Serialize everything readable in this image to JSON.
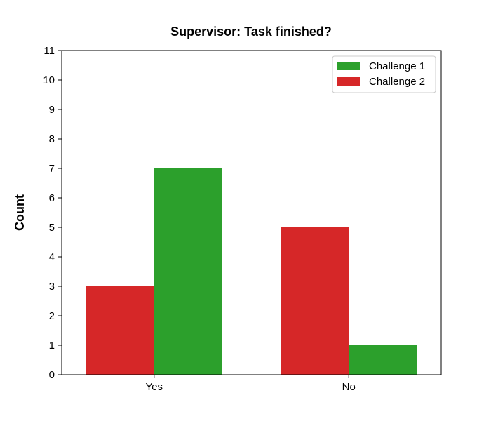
{
  "chart_data": {
    "type": "bar",
    "title": "Supervisor: Task finished?",
    "xlabel": "",
    "ylabel": "Count",
    "categories": [
      "Yes",
      "No"
    ],
    "ylim": [
      0,
      11
    ],
    "yticks": [
      0,
      1,
      2,
      3,
      4,
      5,
      6,
      7,
      8,
      9,
      10,
      11
    ],
    "grid": false,
    "legend_position": "top-right",
    "series": [
      {
        "name": "Challenge 2",
        "color": "#d62728",
        "values": [
          3,
          5
        ]
      },
      {
        "name": "Challenge 1",
        "color": "#2ca02c",
        "values": [
          7,
          1
        ]
      }
    ],
    "legend_order": [
      "Challenge 1",
      "Challenge 2"
    ]
  }
}
